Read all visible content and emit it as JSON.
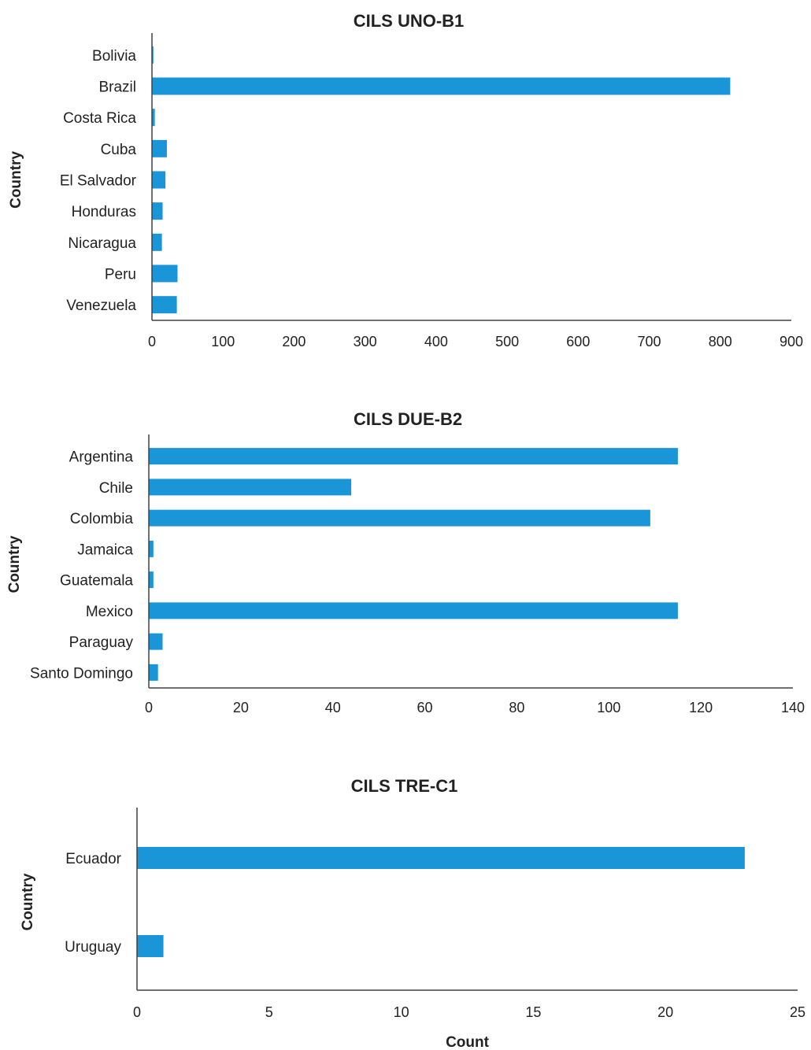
{
  "accent_color": "#1a96d8",
  "chart_data": [
    {
      "type": "bar",
      "orientation": "horizontal",
      "title": "CILS UNO-B1",
      "xlabel": "",
      "ylabel": "Country",
      "categories": [
        "Bolivia",
        "Brazil",
        "Costa Rica",
        "Cuba",
        "El Salvador",
        "Honduras",
        "Nicaragua",
        "Peru",
        "Venezuela"
      ],
      "values": [
        2,
        814,
        4,
        21,
        19,
        15,
        14,
        36,
        35
      ],
      "xlim": [
        0,
        900
      ],
      "xticks": [
        "0",
        "100",
        "200",
        "300",
        "400",
        "500",
        "600",
        "700",
        "800",
        "900"
      ],
      "grid": false,
      "legend": "none"
    },
    {
      "type": "bar",
      "orientation": "horizontal",
      "title": "CILS DUE-B2",
      "xlabel": "",
      "ylabel": "Country",
      "categories": [
        "Argentina",
        "Chile",
        "Colombia",
        "Jamaica",
        "Guatemala",
        "Mexico",
        "Paraguay",
        "Santo Domingo"
      ],
      "values": [
        115,
        44,
        109,
        1,
        1,
        115,
        3,
        2
      ],
      "xlim": [
        0,
        140
      ],
      "xticks": [
        "0",
        "20",
        "40",
        "60",
        "80",
        "100",
        "120",
        "140"
      ],
      "grid": false,
      "legend": "none"
    },
    {
      "type": "bar",
      "orientation": "horizontal",
      "title": "CILS TRE-C1",
      "xlabel": "Count",
      "ylabel": "Country",
      "categories": [
        "Ecuador",
        "Uruguay"
      ],
      "values": [
        23,
        1
      ],
      "xlim": [
        0,
        25
      ],
      "xticks": [
        "0",
        "5",
        "10",
        "15",
        "20",
        "25"
      ],
      "grid": false,
      "legend": "none"
    }
  ]
}
